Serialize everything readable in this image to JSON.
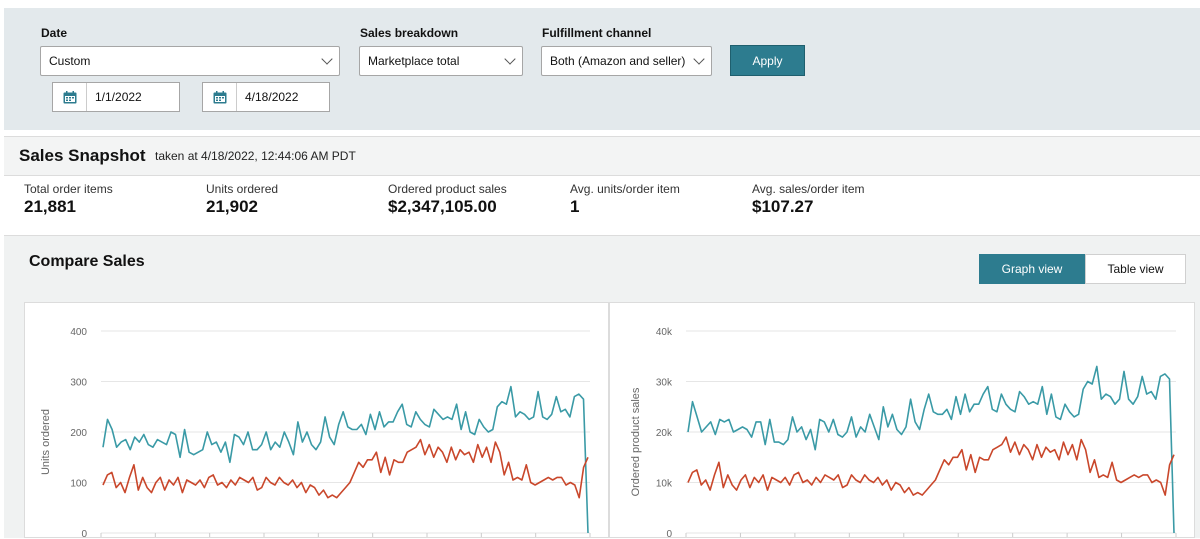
{
  "filters": {
    "date_label": "Date",
    "date_value": "Custom",
    "start_date": "1/1/2022",
    "end_date": "4/18/2022",
    "breakdown_label": "Sales breakdown",
    "breakdown_value": "Marketplace total",
    "channel_label": "Fulfillment channel",
    "channel_value": "Both (Amazon and seller)",
    "apply_label": "Apply"
  },
  "snapshot": {
    "title": "Sales Snapshot",
    "taken": "taken at 4/18/2022, 12:44:06 AM PDT",
    "metrics": [
      {
        "label": "Total order items",
        "value": "21,881"
      },
      {
        "label": "Units ordered",
        "value": "21,902"
      },
      {
        "label": "Ordered product sales",
        "value": "$2,347,105.00"
      },
      {
        "label": "Avg. units/order item",
        "value": "1"
      },
      {
        "label": "Avg. sales/order item",
        "value": "$107.27"
      }
    ]
  },
  "compare": {
    "title": "Compare Sales",
    "graph_view": "Graph view",
    "table_view": "Table view"
  },
  "colors": {
    "accent": "#2d7c8f",
    "series_current": "#3a9aa6",
    "series_compare": "#c9472b"
  },
  "chart_data": [
    {
      "type": "line",
      "ylabel": "Units ordered",
      "ylim": [
        0,
        400
      ],
      "yticks": [
        "0",
        "100",
        "200",
        "300",
        "400"
      ],
      "grid": true,
      "series": [
        {
          "values": [
            170,
            225,
            205,
            170,
            180,
            185,
            165,
            190,
            180,
            195,
            175,
            170,
            185,
            180,
            175,
            200,
            195,
            150,
            205,
            160,
            155,
            160,
            165,
            200,
            175,
            180,
            160,
            180,
            140,
            195,
            190,
            175,
            200,
            165,
            165,
            175,
            200,
            165,
            180,
            170,
            200,
            180,
            155,
            220,
            180,
            200,
            175,
            165,
            180,
            230,
            190,
            175,
            215,
            240,
            210,
            205,
            205,
            215,
            195,
            235,
            205,
            240,
            210,
            220,
            220,
            240,
            255,
            215,
            210,
            240,
            225,
            215,
            210,
            245,
            235,
            225,
            230,
            225,
            255,
            205,
            240,
            200,
            195,
            225,
            210,
            200,
            205,
            250,
            260,
            255,
            290,
            230,
            240,
            235,
            225,
            230,
            280,
            230,
            225,
            235,
            270,
            240,
            245,
            230,
            270,
            275,
            265,
            0
          ]
        },
        {
          "values": [
            95,
            115,
            120,
            90,
            100,
            80,
            110,
            135,
            85,
            110,
            90,
            80,
            100,
            110,
            85,
            105,
            95,
            110,
            80,
            105,
            100,
            95,
            105,
            90,
            110,
            115,
            95,
            100,
            90,
            105,
            95,
            110,
            105,
            100,
            110,
            85,
            90,
            110,
            100,
            95,
            110,
            100,
            95,
            105,
            90,
            100,
            80,
            95,
            90,
            75,
            85,
            70,
            75,
            70,
            80,
            90,
            100,
            120,
            140,
            130,
            145,
            145,
            160,
            120,
            150,
            115,
            145,
            140,
            140,
            160,
            165,
            170,
            185,
            155,
            175,
            150,
            170,
            160,
            140,
            170,
            145,
            165,
            155,
            160,
            140,
            175,
            150,
            170,
            140,
            180,
            160,
            115,
            140,
            105,
            110,
            105,
            135,
            100,
            95,
            100,
            105,
            110,
            105,
            110,
            110,
            95,
            100,
            95,
            70,
            130,
            150
          ]
        }
      ]
    },
    {
      "type": "line",
      "ylabel": "Ordered product sales",
      "ylim": [
        0,
        40000
      ],
      "yticks": [
        "0",
        "10k",
        "20k",
        "30k",
        "40k"
      ],
      "grid": true,
      "series": [
        {
          "values": [
            20000,
            26000,
            23000,
            20000,
            21000,
            22000,
            19500,
            22500,
            22000,
            22500,
            20000,
            20500,
            21000,
            20500,
            19000,
            22000,
            22000,
            17500,
            22500,
            18000,
            18000,
            17500,
            18500,
            23000,
            20000,
            21000,
            18500,
            20500,
            16500,
            22500,
            22000,
            20000,
            22500,
            19500,
            19000,
            20000,
            23000,
            19000,
            21000,
            20000,
            23500,
            21000,
            18500,
            25000,
            21000,
            23500,
            20500,
            19500,
            21000,
            26500,
            22000,
            20500,
            24500,
            27500,
            24000,
            23500,
            23500,
            24500,
            22500,
            27000,
            23500,
            27500,
            24000,
            25500,
            25500,
            27500,
            29000,
            24500,
            24000,
            27500,
            25500,
            24500,
            24000,
            28000,
            27000,
            25500,
            26000,
            25500,
            29000,
            23500,
            27500,
            23000,
            22500,
            25500,
            24000,
            23000,
            23500,
            28500,
            30000,
            29500,
            33000,
            26500,
            27500,
            27000,
            25500,
            26500,
            32000,
            26500,
            25500,
            27000,
            31000,
            27500,
            28000,
            26500,
            31000,
            31500,
            30500,
            0
          ]
        },
        {
          "values": [
            10000,
            12000,
            12500,
            9500,
            10500,
            8500,
            11500,
            14000,
            9000,
            11500,
            9500,
            8500,
            10500,
            11500,
            9000,
            11000,
            10000,
            11500,
            8500,
            11000,
            10500,
            10000,
            11000,
            9500,
            11500,
            12000,
            10000,
            10500,
            9500,
            11000,
            10000,
            11500,
            11000,
            10500,
            11500,
            9000,
            9500,
            11500,
            10500,
            10000,
            11500,
            10500,
            10000,
            11000,
            9500,
            10500,
            8500,
            10000,
            9500,
            8000,
            9000,
            7500,
            8000,
            7500,
            8500,
            9500,
            10500,
            12500,
            14500,
            13500,
            15000,
            15000,
            16500,
            12500,
            15500,
            12000,
            15000,
            14500,
            14500,
            16500,
            17000,
            17500,
            19000,
            16000,
            18000,
            15500,
            17500,
            16500,
            14500,
            17500,
            15000,
            17000,
            16000,
            16500,
            14500,
            18000,
            15500,
            17500,
            14500,
            18500,
            16500,
            12000,
            14500,
            11000,
            11500,
            11000,
            14000,
            10500,
            10000,
            10500,
            11000,
            11500,
            11000,
            11500,
            11500,
            10000,
            10500,
            10000,
            7500,
            13500,
            15500
          ]
        }
      ]
    }
  ]
}
